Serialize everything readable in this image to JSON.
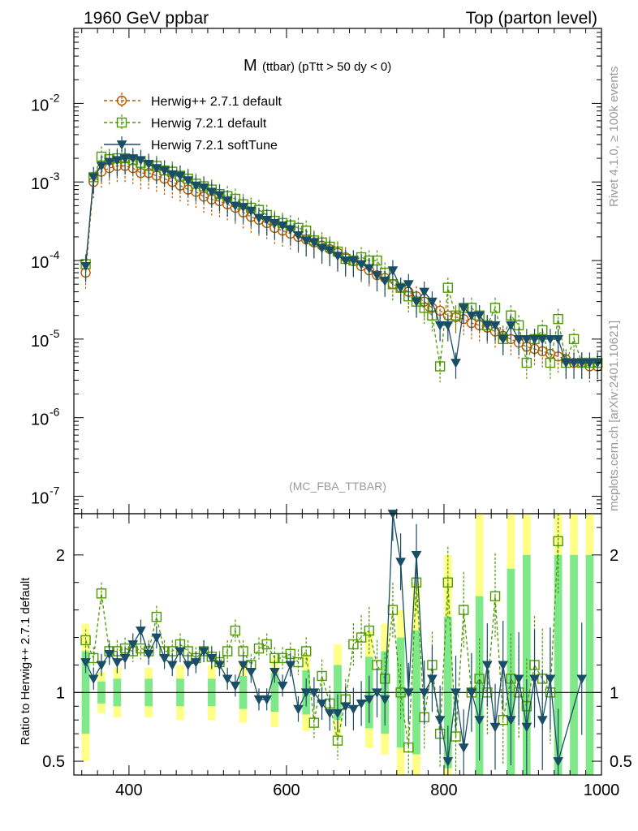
{
  "header": {
    "left": "1960 GeV ppbar",
    "right": "Top (parton level)"
  },
  "side_labels": {
    "rivet": "Rivet 4.1.0, ≥ 100k events",
    "mcplots": "mcplots.cern.ch [arXiv:2401.10621]"
  },
  "chart_data": [
    {
      "type": "line",
      "panel": "main",
      "title_main": "M",
      "title_sub": "(ttbar) (pTtt > 50 dy < 0)",
      "watermark": "(MC_FBA_TTBAR)",
      "yscale": "log",
      "xlim": [
        330,
        1000
      ],
      "ylim": [
        6e-08,
        0.09
      ],
      "ytick_labels": [
        {
          "mant": "10",
          "exp": "-7",
          "value": 1e-07
        },
        {
          "mant": "10",
          "exp": "-6",
          "value": 1e-06
        },
        {
          "mant": "10",
          "exp": "-5",
          "value": 1e-05
        },
        {
          "mant": "10",
          "exp": "-4",
          "value": 0.0001
        },
        {
          "mant": "10",
          "exp": "-3",
          "value": 0.001
        },
        {
          "mant": "10",
          "exp": "-2",
          "value": 0.01
        }
      ],
      "legend_position": "top-left",
      "x": [
        345,
        355,
        365,
        375,
        385,
        395,
        405,
        415,
        425,
        435,
        445,
        455,
        465,
        475,
        485,
        495,
        505,
        515,
        525,
        535,
        545,
        555,
        565,
        575,
        585,
        595,
        605,
        615,
        625,
        635,
        645,
        655,
        665,
        675,
        685,
        695,
        705,
        715,
        725,
        735,
        745,
        755,
        765,
        775,
        785,
        795,
        805,
        815,
        825,
        835,
        845,
        855,
        865,
        875,
        885,
        895,
        905,
        915,
        925,
        935,
        945,
        955,
        965,
        975,
        985,
        995
      ],
      "series": [
        {
          "name": "Herwig++ 2.7.1 default",
          "color": "#b35900",
          "marker": "circle",
          "dashed": true,
          "values": [
            7e-05,
            0.001,
            0.00135,
            0.0015,
            0.0016,
            0.0016,
            0.0015,
            0.0013,
            0.0013,
            0.0012,
            0.0011,
            0.001,
            0.0009,
            0.0008,
            0.00075,
            0.00065,
            0.0006,
            0.00057,
            0.00052,
            0.00047,
            0.00041,
            0.00036,
            0.00033,
            0.0003,
            0.00026,
            0.00024,
            0.00022,
            0.0002,
            0.000185,
            0.00017,
            0.000155,
            0.00014,
            0.000125,
            0.00011,
            9.8e-05,
            8.5e-05,
            7.5e-05,
            6.5e-05,
            6e-05,
            5e-05,
            4.5e-05,
            4e-05,
            3.5e-05,
            3e-05,
            2.5e-05,
            2.3e-05,
            2e-05,
            1.9e-05,
            1.8e-05,
            1.6e-05,
            1.5e-05,
            1.4e-05,
            1.25e-05,
            1.1e-05,
            1e-05,
            9e-06,
            8e-06,
            7.5e-06,
            7e-06,
            6.5e-06,
            6e-06,
            5.5e-06,
            5e-06,
            5e-06,
            4.5e-06,
            4.5e-06
          ]
        },
        {
          "name": "Herwig 7.2.1 default",
          "color": "#4d9900",
          "marker": "square",
          "dashed": true,
          "values": [
            9e-05,
            0.00115,
            0.0021,
            0.00195,
            0.002,
            0.002,
            0.0019,
            0.00175,
            0.0016,
            0.0016,
            0.0014,
            0.00135,
            0.0012,
            0.0011,
            0.00095,
            0.00088,
            0.0008,
            0.0007,
            0.00066,
            0.00061,
            0.00052,
            0.00047,
            0.00044,
            0.00038,
            0.00032,
            0.0003,
            0.00028,
            0.00026,
            0.00024,
            0.00018,
            0.00017,
            0.00015,
            0.00013,
            0.000105,
            0.0001,
            0.00011,
            0.0001,
            0.0001,
            7e-05,
            5e-05,
            4.5e-05,
            3.5e-05,
            3e-05,
            2.5e-05,
            2e-05,
            4.5e-06,
            4.5e-05,
            2e-05,
            2.5e-05,
            2.5e-05,
            2e-05,
            1.5e-05,
            2.5e-05,
            1e-05,
            2e-05,
            1.5e-05,
            5e-06,
            1e-05,
            1.3e-05,
            5e-06,
            1.8e-05,
            5e-06,
            1e-05,
            5e-06,
            5e-06,
            5e-06
          ]
        },
        {
          "name": "Herwig 7.2.1 softTune",
          "color": "#1a4d66",
          "marker": "triangle-down",
          "dashed": false,
          "values": [
            8.5e-05,
            0.00115,
            0.0016,
            0.0018,
            0.0019,
            0.002,
            0.002,
            0.0019,
            0.0017,
            0.0015,
            0.0014,
            0.00125,
            0.0012,
            0.00105,
            0.0009,
            0.00085,
            0.00075,
            0.00068,
            0.00058,
            0.0005,
            0.00048,
            0.00043,
            0.00035,
            0.00033,
            0.0003,
            0.00028,
            0.00025,
            0.00021,
            0.00018,
            0.00017,
            0.000145,
            0.000135,
            0.000115,
            0.0001,
            0.0001,
            9e-05,
            8e-05,
            6.5e-05,
            5.5e-05,
            7.5e-05,
            4.5e-05,
            5e-05,
            3e-05,
            4e-05,
            3e-05,
            1.5e-05,
            1.5e-05,
            5e-06,
            2.5e-05,
            2e-05,
            2e-05,
            1.5e-05,
            1.5e-05,
            1e-05,
            1.5e-05,
            1e-05,
            1e-05,
            1e-05,
            1e-05,
            1e-05,
            1e-05,
            5e-06,
            5e-06,
            5e-06,
            5e-06,
            5e-06
          ]
        }
      ]
    },
    {
      "type": "line",
      "panel": "ratio",
      "ylabel": "Ratio to Herwig++ 2.7.1 default",
      "xlim": [
        330,
        1000
      ],
      "ylim": [
        0.4,
        2.3
      ],
      "xticks": [
        400,
        600,
        800,
        1000
      ],
      "ytick_labels": [
        "0.5",
        "1",
        "2"
      ],
      "reference_line": 1,
      "uncertainty_bands": [
        {
          "name": "outer",
          "color": "#ffff88",
          "x_from": [
            340,
            360,
            380,
            420,
            460,
            500,
            540,
            580,
            620,
            660,
            700,
            720,
            740,
            760,
            800,
            840,
            880,
            900,
            940,
            960,
            980
          ],
          "x_to": [
            350,
            370,
            390,
            430,
            470,
            510,
            550,
            590,
            630,
            670,
            710,
            730,
            750,
            770,
            810,
            850,
            890,
            910,
            950,
            970,
            990
          ],
          "low": [
            0.5,
            0.85,
            0.82,
            0.82,
            0.8,
            0.8,
            0.78,
            0.75,
            0.72,
            0.68,
            0.6,
            0.55,
            0.4,
            0.4,
            0.4,
            0.4,
            0.4,
            0.4,
            0.4,
            0.4,
            0.4
          ],
          "high": [
            1.5,
            1.15,
            1.18,
            1.18,
            1.2,
            1.2,
            1.22,
            1.25,
            1.28,
            1.35,
            1.45,
            1.5,
            1.6,
            1.8,
            2.0,
            2.3,
            2.3,
            2.3,
            2.3,
            2.3,
            2.3
          ]
        },
        {
          "name": "inner",
          "color": "#7fe88a",
          "x_from": [
            340,
            360,
            380,
            420,
            460,
            500,
            540,
            580,
            620,
            660,
            700,
            720,
            740,
            760,
            800,
            840,
            880,
            900,
            940,
            960,
            980
          ],
          "x_to": [
            350,
            370,
            390,
            430,
            470,
            510,
            550,
            590,
            630,
            670,
            710,
            730,
            750,
            770,
            810,
            850,
            890,
            910,
            950,
            970,
            990
          ],
          "low": [
            0.7,
            0.92,
            0.9,
            0.9,
            0.9,
            0.9,
            0.88,
            0.86,
            0.84,
            0.8,
            0.74,
            0.7,
            0.6,
            0.55,
            0.45,
            0.4,
            0.4,
            0.4,
            0.4,
            0.4,
            0.4
          ],
          "high": [
            1.3,
            1.08,
            1.1,
            1.1,
            1.1,
            1.1,
            1.12,
            1.14,
            1.16,
            1.2,
            1.26,
            1.3,
            1.4,
            1.45,
            1.55,
            1.7,
            1.9,
            2.0,
            2.0,
            2.0,
            2.0
          ]
        }
      ],
      "series": [
        {
          "name": "Herwig 7.2.1 default",
          "color": "#4d9900",
          "marker": "square",
          "dashed": true,
          "x": [
            345,
            355,
            365,
            375,
            385,
            395,
            405,
            415,
            425,
            435,
            445,
            455,
            465,
            475,
            485,
            495,
            505,
            515,
            525,
            535,
            545,
            555,
            565,
            575,
            585,
            595,
            605,
            615,
            625,
            635,
            645,
            655,
            665,
            675,
            685,
            695,
            705,
            715,
            725,
            735,
            745,
            755,
            765,
            775,
            785,
            795,
            805,
            815,
            825,
            835,
            845,
            855,
            865,
            875,
            885,
            895,
            905,
            915,
            925,
            935,
            945
          ],
          "values": [
            1.38,
            1.25,
            1.72,
            1.3,
            1.3,
            1.32,
            1.3,
            1.32,
            1.3,
            1.55,
            1.3,
            1.3,
            1.35,
            1.3,
            1.25,
            1.3,
            1.26,
            1.22,
            1.3,
            1.45,
            1.3,
            1.2,
            1.32,
            1.35,
            1.25,
            1.25,
            1.28,
            1.22,
            1.3,
            0.78,
            1.12,
            0.92,
            0.65,
            0.95,
            1.35,
            1.4,
            1.45,
            1.2,
            1.1,
            1.6,
            1.0,
            0.6,
            1.8,
            0.82,
            1.2,
            0.7,
            1.8,
            0.68,
            1.6,
            1.0,
            1.1,
            1.0,
            1.7,
            0.8,
            1.1,
            1.0,
            0.9,
            1.2,
            1.1,
            1.0,
            2.1
          ]
        },
        {
          "name": "Herwig 7.2.1 softTune",
          "color": "#1a4d66",
          "marker": "triangle-down",
          "dashed": false,
          "x": [
            345,
            355,
            365,
            375,
            385,
            395,
            405,
            415,
            425,
            435,
            445,
            455,
            465,
            475,
            485,
            495,
            505,
            515,
            525,
            535,
            545,
            555,
            565,
            575,
            585,
            595,
            605,
            615,
            625,
            635,
            645,
            655,
            665,
            675,
            685,
            695,
            705,
            715,
            725,
            735,
            745,
            755,
            765,
            775,
            785,
            795,
            805,
            815,
            825,
            835,
            845,
            855,
            865,
            875,
            885,
            895,
            905,
            915,
            925,
            935,
            945,
            975
          ],
          "values": [
            1.22,
            1.1,
            1.2,
            1.28,
            1.22,
            1.25,
            1.35,
            1.45,
            1.28,
            1.4,
            1.25,
            1.2,
            1.3,
            1.2,
            1.22,
            1.3,
            1.25,
            1.2,
            1.1,
            1.05,
            1.2,
            1.15,
            0.95,
            0.95,
            1.15,
            1.05,
            1.2,
            0.88,
            1.0,
            1.0,
            0.92,
            0.85,
            0.85,
            0.9,
            0.88,
            0.92,
            0.95,
            1.0,
            0.95,
            2.3,
            1.95,
            1.0,
            2.0,
            1.0,
            1.1,
            0.8,
            0.5,
            1.0,
            0.6,
            1.0,
            0.8,
            1.2,
            0.75,
            1.2,
            0.8,
            1.1,
            0.75,
            1.1,
            0.8,
            1.1,
            0.5,
            1.1
          ]
        }
      ]
    }
  ]
}
